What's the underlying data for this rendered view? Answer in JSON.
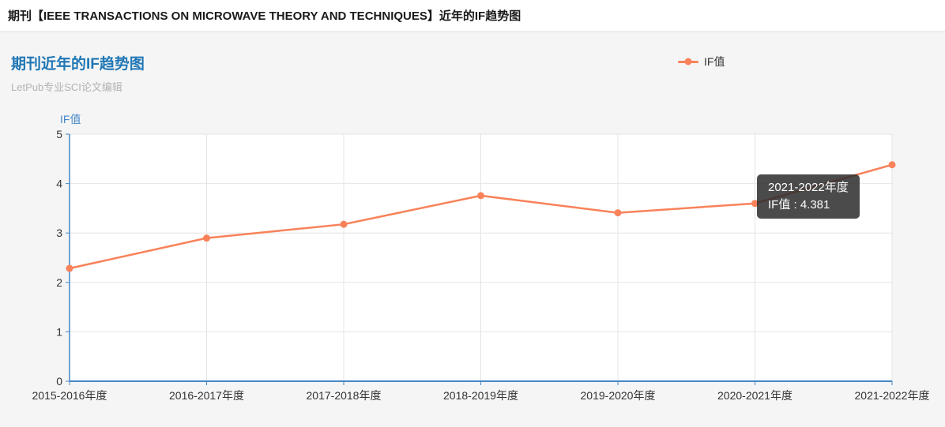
{
  "header": {
    "title": "期刊【IEEE TRANSACTIONS ON MICROWAVE THEORY AND TECHNIQUES】近年的IF趋势图"
  },
  "panel": {
    "title": "期刊近年的IF趋势图",
    "subtitle": "LetPub专业SCI论文编辑"
  },
  "legend": {
    "label": "IF值"
  },
  "tooltip": {
    "title": "2021-2022年度",
    "value_line": "IF值 : 4.381"
  },
  "colors": {
    "line": "#f8825a",
    "axis": "#4587c7",
    "grid": "#e4e4e4",
    "title_blue": "#2077b5",
    "tooltip_bg": "rgba(44,44,44,0.85)"
  },
  "chart_data": {
    "type": "line",
    "title": "期刊近年的IF趋势图",
    "categories": [
      "2015-2016年度",
      "2016-2017年度",
      "2017-2018年度",
      "2018-2019年度",
      "2019-2020年度",
      "2020-2021年度",
      "2021-2022年度"
    ],
    "series": [
      {
        "name": "IF值",
        "values": [
          2.284,
          2.897,
          3.176,
          3.756,
          3.409,
          3.599,
          4.381
        ]
      }
    ],
    "xlabel": "",
    "ylabel": "IF值",
    "ylim": [
      0,
      5
    ],
    "yticks": [
      0,
      1,
      2,
      3,
      4,
      5
    ],
    "grid": true,
    "legend_position": "top-right",
    "tooltip_point": {
      "category": "2021-2022年度",
      "value": 4.381
    }
  }
}
